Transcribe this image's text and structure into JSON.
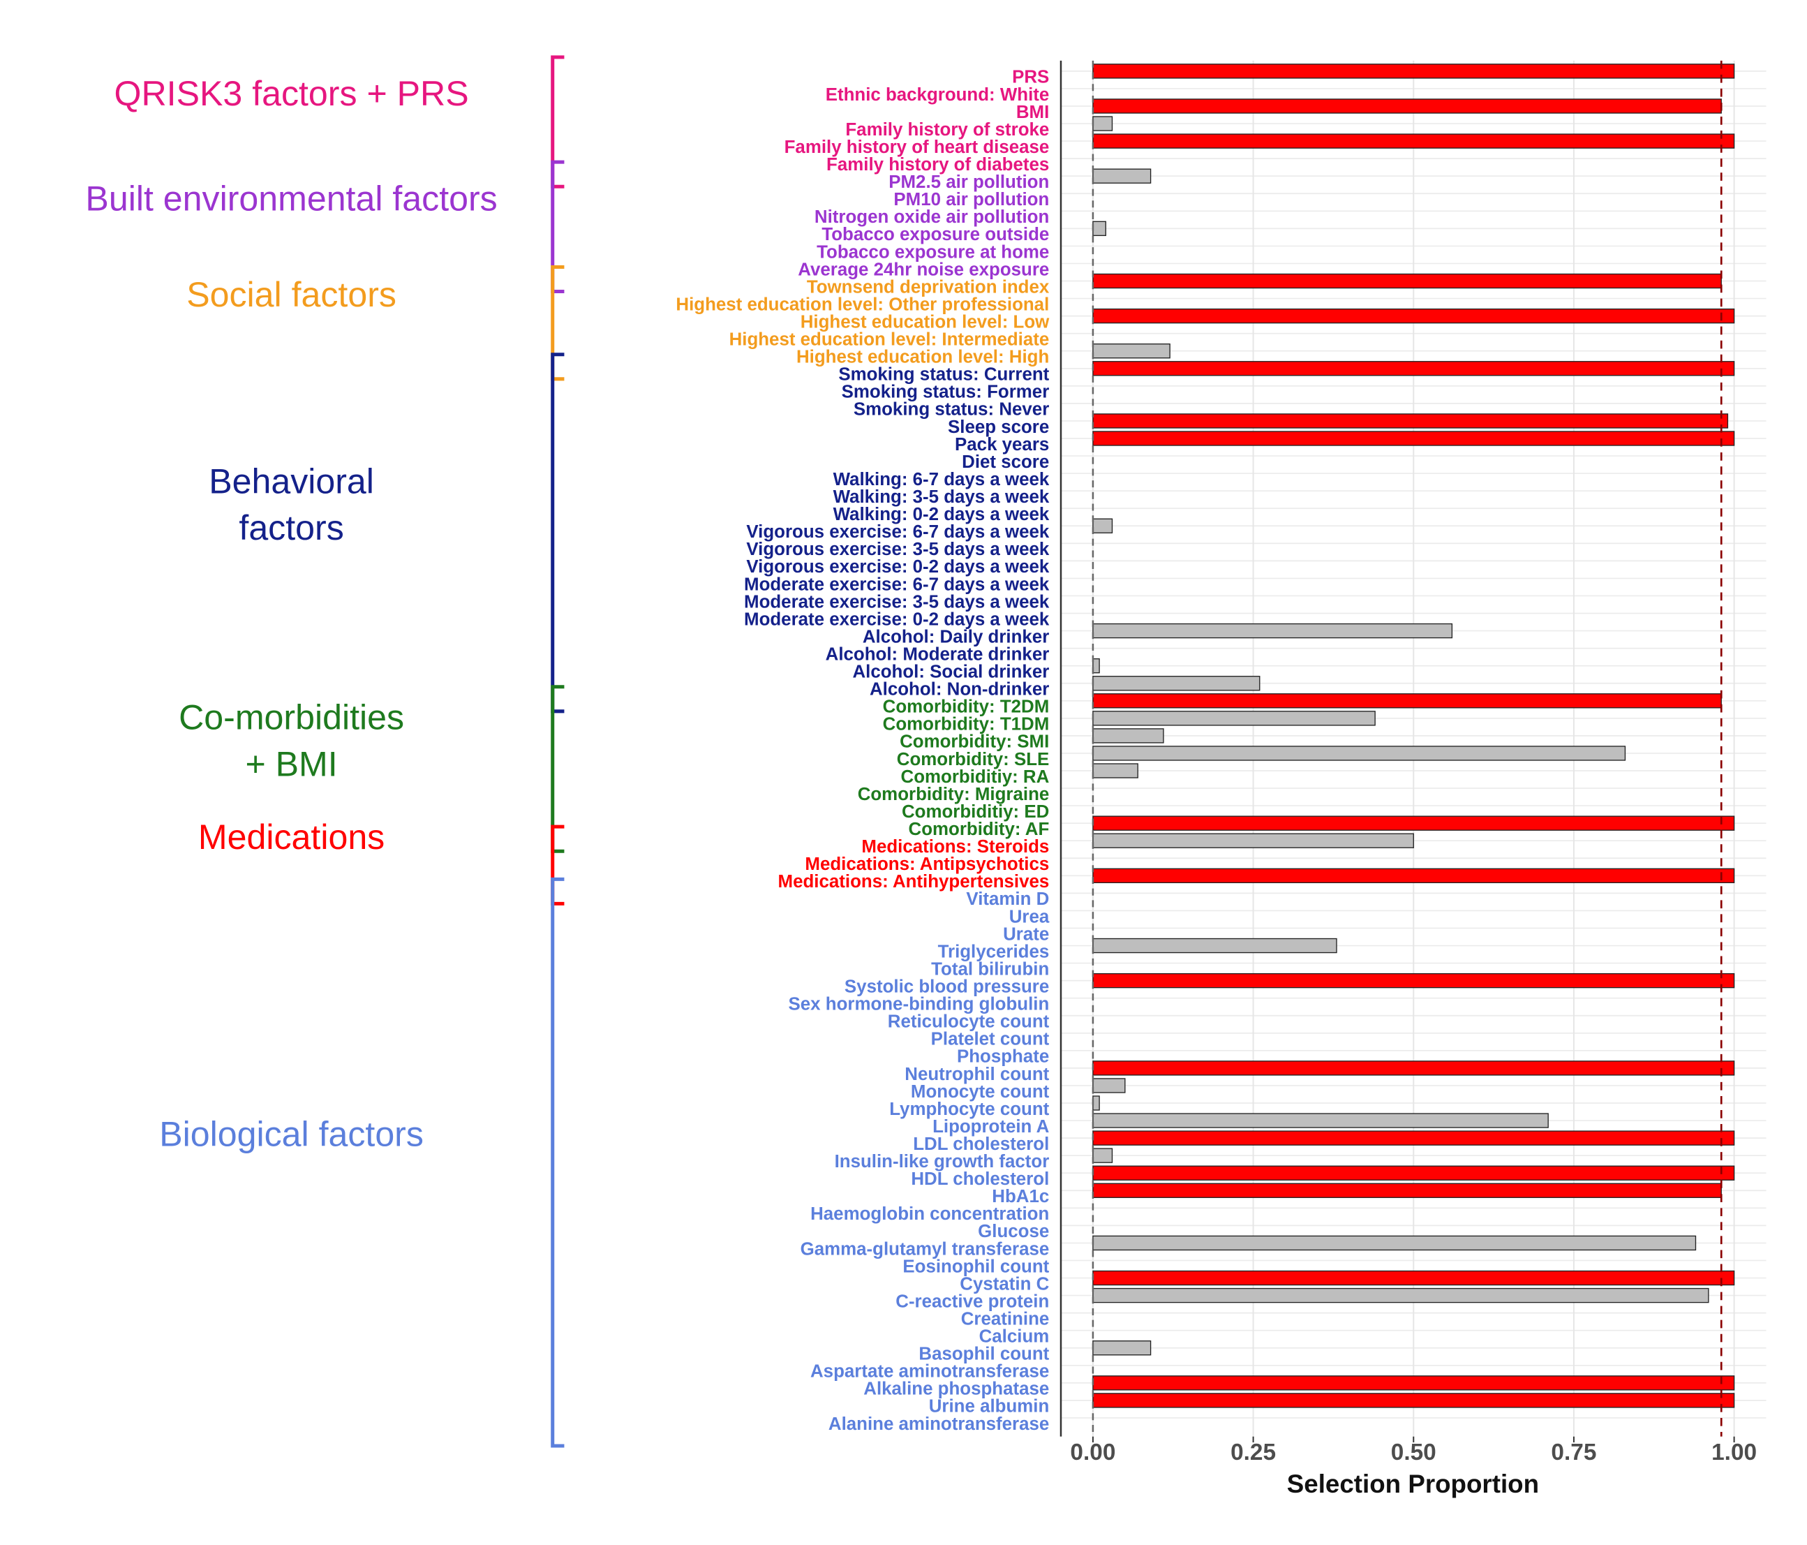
{
  "chart_data": {
    "type": "bar",
    "orientation": "horizontal",
    "xlabel": "Selection Proportion",
    "xlim": [
      -0.05,
      1.05
    ],
    "xticks": [
      {
        "value": 0,
        "label": "0.00"
      },
      0.25,
      {
        "value": 0.5,
        "label": "0.50"
      },
      0.75,
      {
        "value": 1,
        "label": "1.00"
      }
    ],
    "grid": true,
    "threshold": 0.98,
    "threshold_color": "#8b0000",
    "zero_line_color": "#666666",
    "colors": {
      "selected": "#ff0000",
      "other": "#bebebe"
    },
    "groups": [
      {
        "label_lines": [
          "QRISK3 factors + PRS"
        ],
        "color": "#e6167f",
        "categories": [
          "PRS",
          "Ethnic background: White",
          "BMI",
          "Family history of stroke",
          "Family history of heart disease",
          "Family history of diabetes"
        ],
        "values": [
          1,
          0,
          0.98,
          0.03,
          1,
          0
        ]
      },
      {
        "label_lines": [
          "Built environmental factors"
        ],
        "color": "#9b35d0",
        "categories": [
          "PM2.5 air pollution",
          "PM10 air pollution",
          "Nitrogen oxide air pollution",
          "Tobacco exposure outside",
          "Tobacco exposure at home",
          "Average 24hr noise exposure"
        ],
        "values": [
          0.09,
          0,
          0,
          0.02,
          0,
          0
        ]
      },
      {
        "label_lines": [
          "Social factors"
        ],
        "color": "#f39c1e",
        "categories": [
          "Townsend deprivation index",
          "Highest education level: Other professional",
          "Highest education level: Low",
          "Highest education level: Intermediate",
          "Highest education level: High"
        ],
        "values": [
          0.98,
          0,
          1,
          0,
          0.12
        ]
      },
      {
        "label_lines": [
          "Behavioral",
          "factors"
        ],
        "color": "#14218a",
        "categories": [
          "Smoking status: Current",
          "Smoking status: Former",
          "Smoking status: Never",
          "Sleep score",
          "Pack years",
          "Diet score",
          "Walking: 6-7 days a week",
          "Walking: 3-5 days a week",
          "Walking: 0-2 days a week",
          "Vigorous exercise: 6-7 days a week",
          "Vigorous exercise: 3-5 days a week",
          "Vigorous exercise: 0-2 days a week",
          "Moderate exercise: 6-7 days a week",
          "Moderate exercise: 3-5 days a week",
          "Moderate exercise: 0-2 days a week",
          "Alcohol: Daily drinker",
          "Alcohol: Moderate drinker",
          "Alcohol: Social drinker",
          "Alcohol: Non-drinker"
        ],
        "values": [
          1,
          0,
          0,
          0.99,
          1,
          0,
          0,
          0,
          0,
          0.03,
          0,
          0,
          0,
          0,
          0,
          0.56,
          0,
          0.01,
          0.26
        ]
      },
      {
        "label_lines": [
          "Co-morbidities",
          "+ BMI"
        ],
        "color": "#1e7a1e",
        "categories": [
          "Comorbidity: T2DM",
          "Comorbidity: T1DM",
          "Comorbidity: SMI",
          "Comorbidity: SLE",
          "Comorbiditiy: RA",
          "Comorbidity: Migraine",
          "Comorbiditiy: ED",
          "Comorbidity: AF"
        ],
        "values": [
          0.98,
          0.44,
          0.11,
          0.83,
          0.07,
          0,
          0,
          1
        ]
      },
      {
        "label_lines": [
          "Medications"
        ],
        "color": "#ff0000",
        "categories": [
          "Medications: Steroids",
          "Medications: Antipsychotics",
          "Medications: Antihypertensives"
        ],
        "values": [
          0.5,
          0,
          1
        ]
      },
      {
        "label_lines": [
          "Biological factors"
        ],
        "color": "#5b7fdc",
        "categories": [
          "Vitamin D",
          "Urea",
          "Urate",
          "Triglycerides",
          "Total bilirubin",
          "Systolic blood pressure",
          "Sex hormone-binding globulin",
          "Reticulocyte count",
          "Platelet count",
          "Phosphate",
          "Neutrophil count",
          "Monocyte count",
          "Lymphocyte count",
          "Lipoprotein A",
          "LDL cholesterol",
          "Insulin-like growth factor",
          "HDL cholesterol",
          "HbA1c",
          "Haemoglobin concentration",
          "Glucose",
          "Gamma-glutamyl transferase",
          "Eosinophil count",
          "Cystatin C",
          "C-reactive protein",
          "Creatinine",
          "Calcium",
          "Basophil count",
          "Aspartate aminotransferase",
          "Alkaline phosphatase",
          "Urine albumin",
          "Alanine aminotransferase"
        ],
        "values": [
          0,
          0,
          0,
          0.38,
          0,
          1,
          0,
          0,
          0,
          0,
          1,
          0.05,
          0.01,
          0.71,
          1,
          0.03,
          1,
          0.98,
          0,
          0,
          0.94,
          0,
          1,
          0.96,
          0,
          0,
          0.09,
          0,
          1,
          1,
          0
        ]
      }
    ]
  }
}
